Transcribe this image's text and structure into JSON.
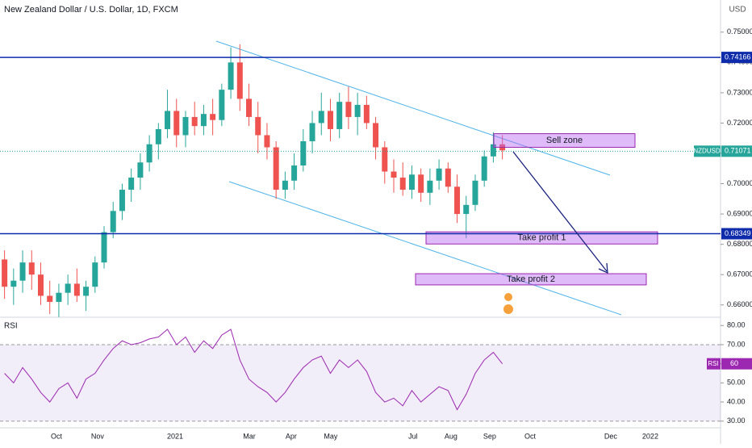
{
  "chart_data": {
    "type": "candlestick",
    "title": "New Zealand Dollar / U.S. Dollar, 1D, FXCM",
    "currency": "USD",
    "x": [
      0,
      1,
      2,
      3,
      4,
      5,
      6,
      7,
      8,
      9,
      10,
      11,
      12,
      13,
      14,
      15,
      16,
      17,
      18,
      19,
      20,
      21,
      22,
      23,
      24,
      25,
      26,
      27,
      28,
      29,
      30,
      31,
      32,
      33,
      34,
      35,
      36,
      37,
      38,
      39,
      40,
      41,
      42,
      43,
      44,
      45,
      46,
      47,
      48,
      49,
      50,
      51,
      52,
      53,
      54,
      55
    ],
    "ohlc": [
      [
        0.675,
        0.678,
        0.662,
        0.666
      ],
      [
        0.666,
        0.672,
        0.66,
        0.668
      ],
      [
        0.668,
        0.678,
        0.664,
        0.674
      ],
      [
        0.674,
        0.678,
        0.665,
        0.67
      ],
      [
        0.67,
        0.674,
        0.66,
        0.663
      ],
      [
        0.663,
        0.668,
        0.657,
        0.661
      ],
      [
        0.661,
        0.667,
        0.656,
        0.664
      ],
      [
        0.664,
        0.67,
        0.66,
        0.667
      ],
      [
        0.667,
        0.672,
        0.661,
        0.663
      ],
      [
        0.663,
        0.668,
        0.658,
        0.666
      ],
      [
        0.666,
        0.676,
        0.664,
        0.674
      ],
      [
        0.674,
        0.686,
        0.672,
        0.684
      ],
      [
        0.684,
        0.694,
        0.682,
        0.691
      ],
      [
        0.691,
        0.7,
        0.688,
        0.698
      ],
      [
        0.698,
        0.705,
        0.694,
        0.702
      ],
      [
        0.702,
        0.71,
        0.698,
        0.707
      ],
      [
        0.707,
        0.716,
        0.704,
        0.713
      ],
      [
        0.713,
        0.72,
        0.708,
        0.718
      ],
      [
        0.718,
        0.731,
        0.715,
        0.724
      ],
      [
        0.724,
        0.728,
        0.712,
        0.716
      ],
      [
        0.716,
        0.724,
        0.712,
        0.722
      ],
      [
        0.722,
        0.727,
        0.716,
        0.719
      ],
      [
        0.719,
        0.726,
        0.716,
        0.723
      ],
      [
        0.723,
        0.728,
        0.716,
        0.721
      ],
      [
        0.721,
        0.733,
        0.719,
        0.731
      ],
      [
        0.731,
        0.745,
        0.728,
        0.74
      ],
      [
        0.74,
        0.746,
        0.724,
        0.728
      ],
      [
        0.728,
        0.733,
        0.719,
        0.722
      ],
      [
        0.722,
        0.727,
        0.71,
        0.716
      ],
      [
        0.716,
        0.72,
        0.708,
        0.712
      ],
      [
        0.712,
        0.714,
        0.695,
        0.698
      ],
      [
        0.698,
        0.704,
        0.695,
        0.701
      ],
      [
        0.701,
        0.71,
        0.698,
        0.706
      ],
      [
        0.706,
        0.718,
        0.704,
        0.714
      ],
      [
        0.714,
        0.724,
        0.71,
        0.72
      ],
      [
        0.72,
        0.73,
        0.716,
        0.724
      ],
      [
        0.724,
        0.728,
        0.714,
        0.718
      ],
      [
        0.718,
        0.73,
        0.715,
        0.727
      ],
      [
        0.727,
        0.732,
        0.718,
        0.722
      ],
      [
        0.722,
        0.73,
        0.716,
        0.726
      ],
      [
        0.726,
        0.729,
        0.718,
        0.72
      ],
      [
        0.72,
        0.722,
        0.708,
        0.712
      ],
      [
        0.712,
        0.714,
        0.7,
        0.704
      ],
      [
        0.704,
        0.708,
        0.697,
        0.702
      ],
      [
        0.702,
        0.707,
        0.696,
        0.698
      ],
      [
        0.698,
        0.706,
        0.695,
        0.703
      ],
      [
        0.703,
        0.705,
        0.694,
        0.697
      ],
      [
        0.697,
        0.705,
        0.693,
        0.701
      ],
      [
        0.701,
        0.708,
        0.698,
        0.705
      ],
      [
        0.705,
        0.707,
        0.697,
        0.699
      ],
      [
        0.699,
        0.703,
        0.687,
        0.69
      ],
      [
        0.69,
        0.696,
        0.682,
        0.693
      ],
      [
        0.693,
        0.703,
        0.691,
        0.701
      ],
      [
        0.701,
        0.711,
        0.699,
        0.709
      ],
      [
        0.709,
        0.717,
        0.707,
        0.713
      ],
      [
        0.713,
        0.716,
        0.708,
        0.711
      ]
    ],
    "up_color": "#26a69a",
    "down_color": "#ef5350",
    "xlim": [
      -0.5,
      79.1
    ],
    "xticks": [
      {
        "value": 5.74,
        "label": "Oct"
      },
      {
        "value": 10.28,
        "label": "Nov"
      },
      {
        "value": 18.84,
        "label": "2021"
      },
      {
        "value": 27.04,
        "label": "Mar"
      },
      {
        "value": 31.67,
        "label": "Apr"
      },
      {
        "value": 36.04,
        "label": "May"
      },
      {
        "value": 45.13,
        "label": "Jul"
      },
      {
        "value": 49.32,
        "label": "Aug"
      },
      {
        "value": 53.6,
        "label": "Sep"
      },
      {
        "value": 58.06,
        "label": "Oct"
      },
      {
        "value": 66.97,
        "label": "Dec"
      },
      {
        "value": 71.34,
        "label": "2022"
      }
    ],
    "ylim": [
      0.6562,
      0.7606
    ],
    "yticks": [
      {
        "value": 0.75,
        "label": "0.75000"
      },
      {
        "value": 0.74,
        "label": "0.74000"
      },
      {
        "value": 0.73,
        "label": "0.73000"
      },
      {
        "value": 0.72,
        "label": "0.72000"
      },
      {
        "value": 0.71,
        "label": "0.71000"
      },
      {
        "value": 0.7,
        "label": "0.70000"
      },
      {
        "value": 0.69,
        "label": "0.69000"
      },
      {
        "value": 0.68,
        "label": "0.68000"
      },
      {
        "value": 0.67,
        "label": "0.67000"
      },
      {
        "value": 0.66,
        "label": "0.66000"
      }
    ],
    "hlines": [
      0.74166,
      0.68349
    ],
    "last_price": {
      "symbol": "NZDUSD",
      "value": 0.71071
    },
    "zones": [
      {
        "label": "Sell zone",
        "top": 0.7165,
        "bottom": 0.712
      },
      {
        "label": "Take profit 1",
        "top": 0.6841,
        "bottom": 0.6801
      },
      {
        "label": "Take profit 2",
        "top": 0.6703,
        "bottom": 0.6666
      }
    ],
    "rsi": {
      "name": "RSI",
      "color": "#9c27b0",
      "values": [
        55,
        50,
        58,
        52,
        45,
        40,
        47,
        50,
        42,
        52,
        55,
        62,
        68,
        72,
        70,
        71,
        73,
        74,
        78,
        70,
        74,
        66,
        72,
        68,
        75,
        78,
        62,
        52,
        48,
        45,
        40,
        45,
        52,
        58,
        62,
        64,
        55,
        62,
        58,
        62,
        56,
        45,
        40,
        42,
        38,
        46,
        40,
        44,
        48,
        46,
        36,
        44,
        55,
        62,
        66,
        60
      ],
      "last": 60,
      "ylim": [
        26.5,
        83.5
      ],
      "band": [
        30,
        70
      ],
      "yticks": [
        {
          "value": 80,
          "label": "80.00"
        },
        {
          "value": 70,
          "label": "70.00"
        },
        {
          "value": 60,
          "label": "60.00"
        },
        {
          "value": 50,
          "label": "50.00"
        },
        {
          "value": 40,
          "label": "40.00"
        },
        {
          "value": 30,
          "label": "30.00"
        }
      ]
    }
  }
}
